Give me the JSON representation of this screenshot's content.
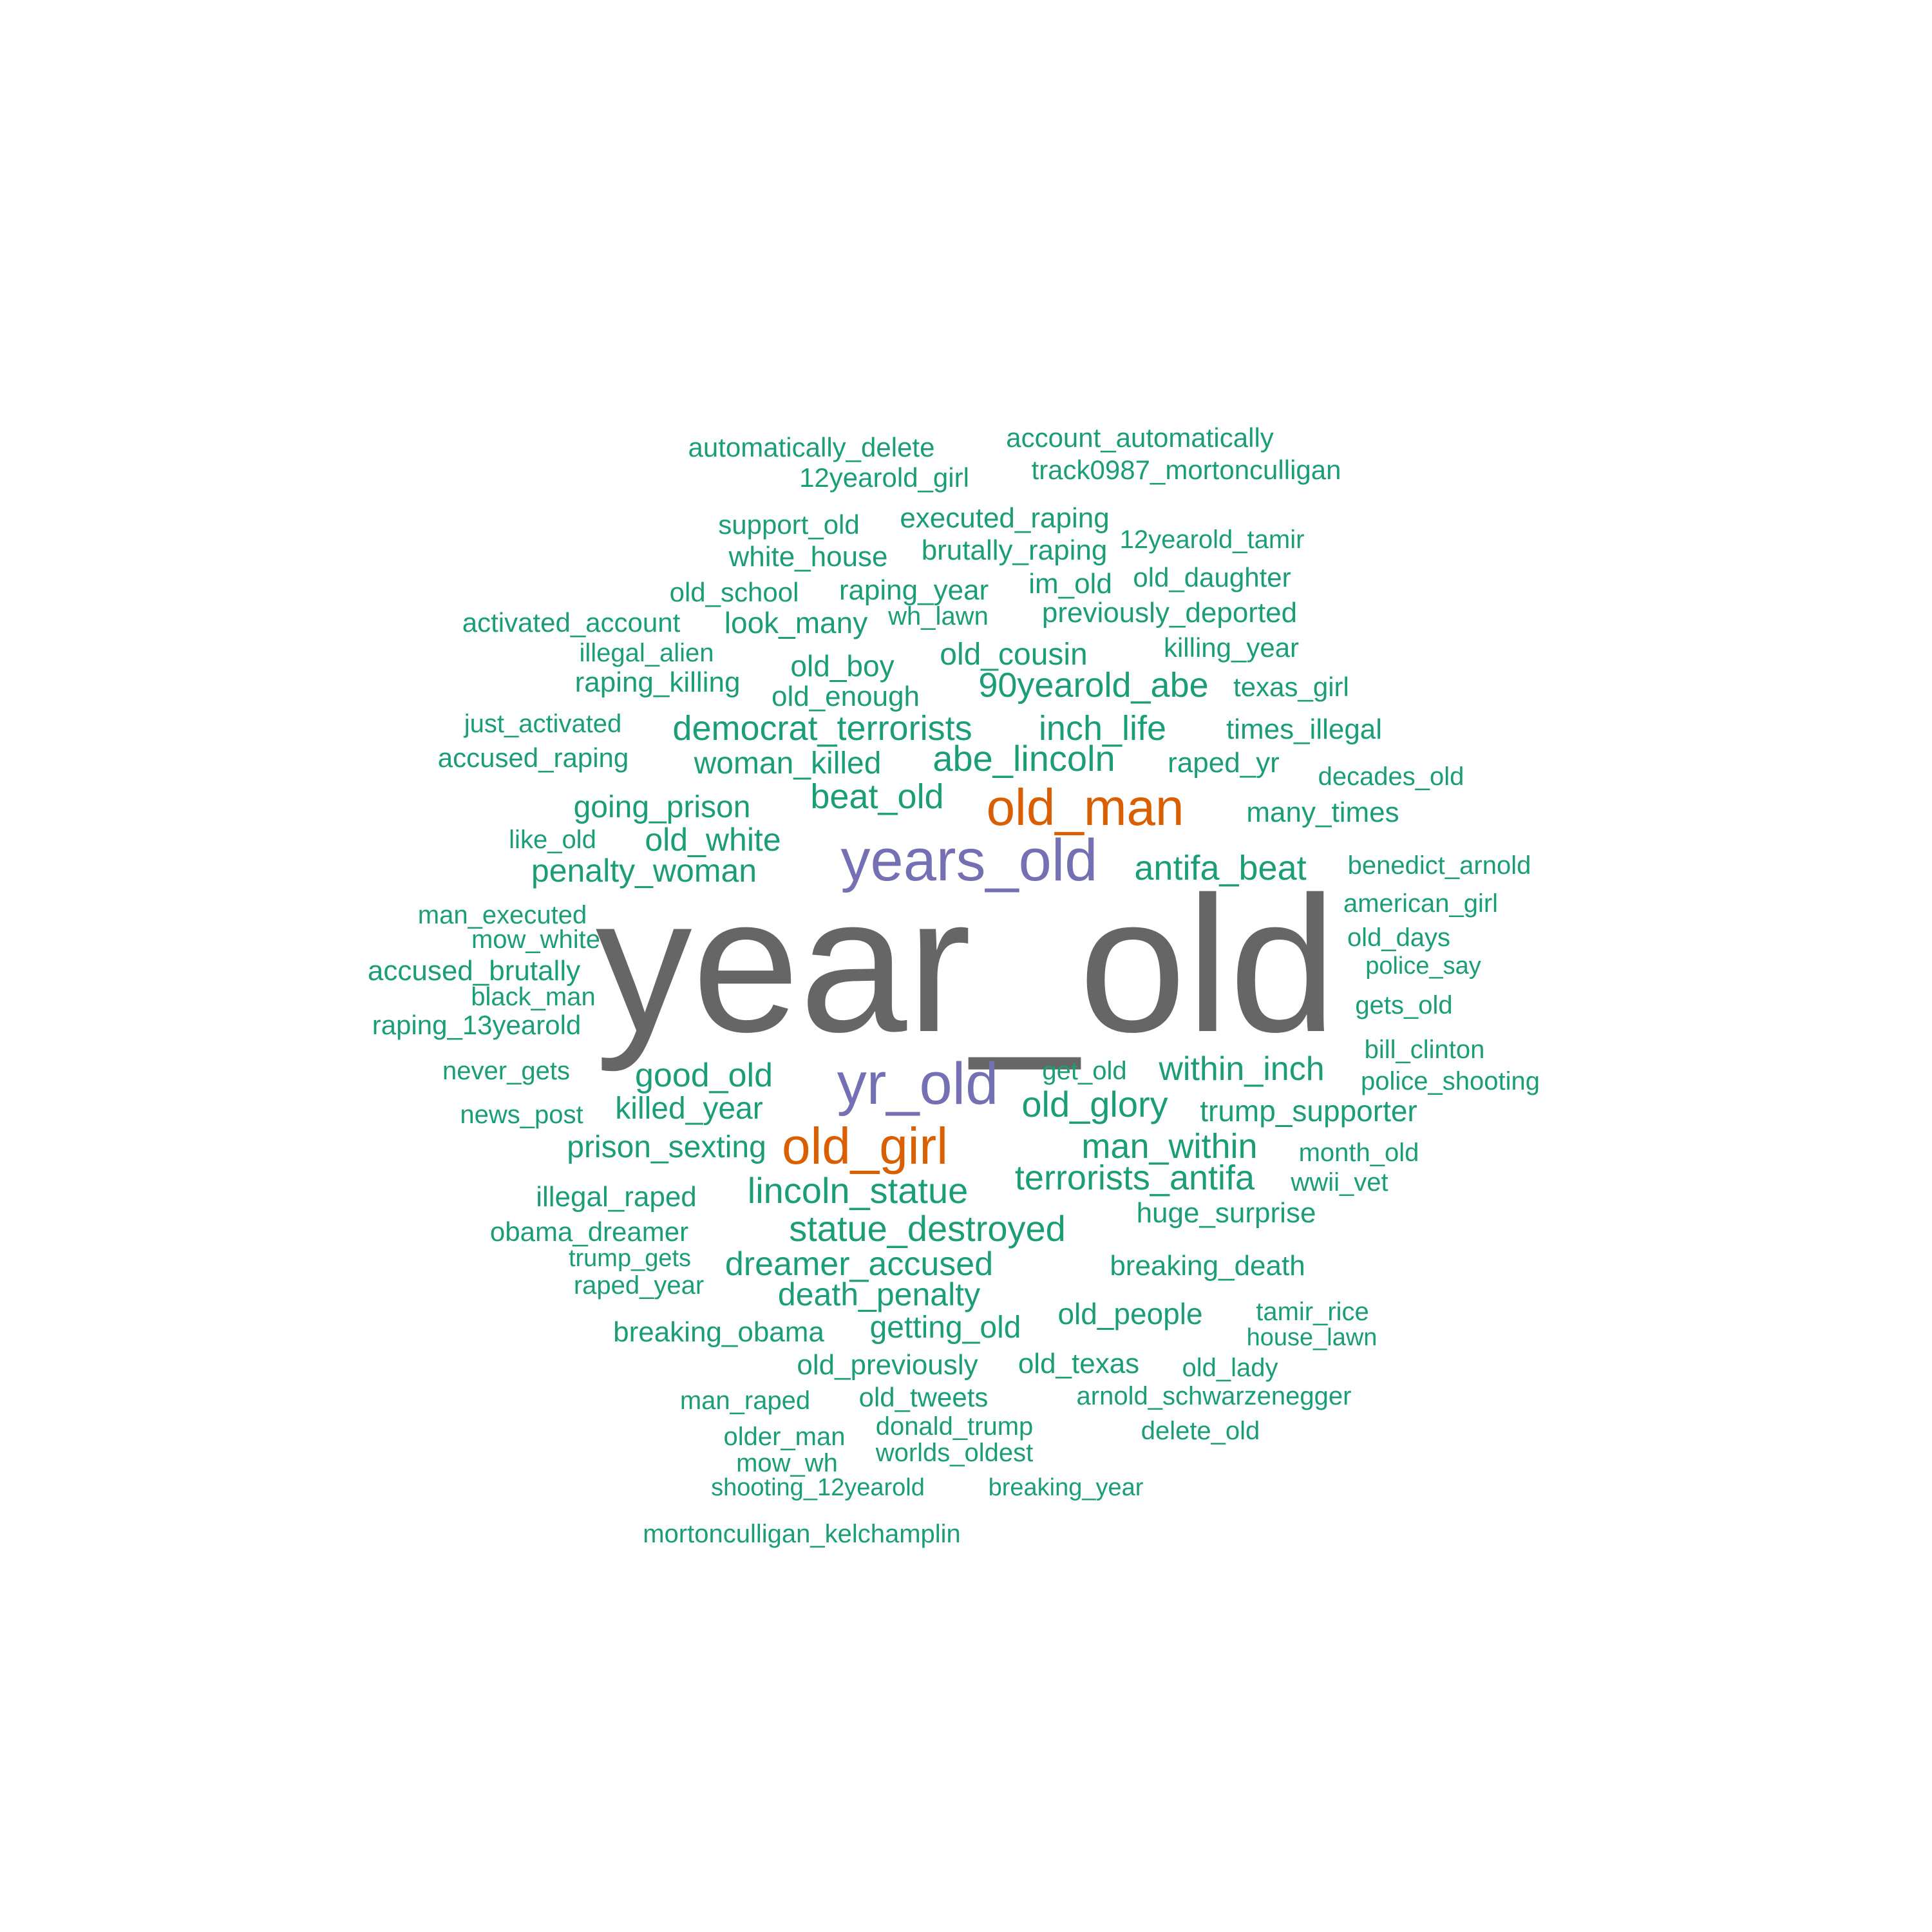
{
  "palette": {
    "background": "#ffffff",
    "gray": "#666666",
    "purple": "#7570b3",
    "orange": "#d95f02",
    "green": "#1b9e77"
  },
  "words": [
    {
      "text": "year_old",
      "color": "gray"
    },
    {
      "text": "years_old",
      "color": "purple"
    },
    {
      "text": "yr_old",
      "color": "purple"
    },
    {
      "text": "old_man",
      "color": "orange"
    },
    {
      "text": "old_girl",
      "color": "orange"
    },
    {
      "text": "automatically_delete",
      "color": "green"
    },
    {
      "text": "account_automatically",
      "color": "green"
    },
    {
      "text": "12yearold_girl",
      "color": "green"
    },
    {
      "text": "track0987_mortonculligan",
      "color": "green"
    },
    {
      "text": "support_old",
      "color": "green"
    },
    {
      "text": "executed_raping",
      "color": "green"
    },
    {
      "text": "white_house",
      "color": "green"
    },
    {
      "text": "brutally_raping",
      "color": "green"
    },
    {
      "text": "12yearold_tamir",
      "color": "green"
    },
    {
      "text": "old_school",
      "color": "green"
    },
    {
      "text": "raping_year",
      "color": "green"
    },
    {
      "text": "im_old",
      "color": "green"
    },
    {
      "text": "old_daughter",
      "color": "green"
    },
    {
      "text": "activated_account",
      "color": "green"
    },
    {
      "text": "look_many",
      "color": "green"
    },
    {
      "text": "wh_lawn",
      "color": "green"
    },
    {
      "text": "previously_deported",
      "color": "green"
    },
    {
      "text": "illegal_alien",
      "color": "green"
    },
    {
      "text": "old_boy",
      "color": "green"
    },
    {
      "text": "old_cousin",
      "color": "green"
    },
    {
      "text": "killing_year",
      "color": "green"
    },
    {
      "text": "raping_killing",
      "color": "green"
    },
    {
      "text": "old_enough",
      "color": "green"
    },
    {
      "text": "90yearold_abe",
      "color": "green"
    },
    {
      "text": "texas_girl",
      "color": "green"
    },
    {
      "text": "just_activated",
      "color": "green"
    },
    {
      "text": "democrat_terrorists",
      "color": "green"
    },
    {
      "text": "inch_life",
      "color": "green"
    },
    {
      "text": "times_illegal",
      "color": "green"
    },
    {
      "text": "accused_raping",
      "color": "green"
    },
    {
      "text": "woman_killed",
      "color": "green"
    },
    {
      "text": "abe_lincoln",
      "color": "green"
    },
    {
      "text": "raped_yr",
      "color": "green"
    },
    {
      "text": "decades_old",
      "color": "green"
    },
    {
      "text": "beat_old",
      "color": "green"
    },
    {
      "text": "going_prison",
      "color": "green"
    },
    {
      "text": "many_times",
      "color": "green"
    },
    {
      "text": "like_old",
      "color": "green"
    },
    {
      "text": "old_white",
      "color": "green"
    },
    {
      "text": "antifa_beat",
      "color": "green"
    },
    {
      "text": "benedict_arnold",
      "color": "green"
    },
    {
      "text": "penalty_woman",
      "color": "green"
    },
    {
      "text": "american_girl",
      "color": "green"
    },
    {
      "text": "man_executed",
      "color": "green"
    },
    {
      "text": "old_days",
      "color": "green"
    },
    {
      "text": "mow_white",
      "color": "green"
    },
    {
      "text": "police_say",
      "color": "green"
    },
    {
      "text": "accused_brutally",
      "color": "green"
    },
    {
      "text": "gets_old",
      "color": "green"
    },
    {
      "text": "black_man",
      "color": "green"
    },
    {
      "text": "raping_13yearold",
      "color": "green"
    },
    {
      "text": "bill_clinton",
      "color": "green"
    },
    {
      "text": "never_gets",
      "color": "green"
    },
    {
      "text": "good_old",
      "color": "green"
    },
    {
      "text": "get_old",
      "color": "green"
    },
    {
      "text": "within_inch",
      "color": "green"
    },
    {
      "text": "police_shooting",
      "color": "green"
    },
    {
      "text": "news_post",
      "color": "green"
    },
    {
      "text": "killed_year",
      "color": "green"
    },
    {
      "text": "old_glory",
      "color": "green"
    },
    {
      "text": "trump_supporter",
      "color": "green"
    },
    {
      "text": "prison_sexting",
      "color": "green"
    },
    {
      "text": "man_within",
      "color": "green"
    },
    {
      "text": "month_old",
      "color": "green"
    },
    {
      "text": "terrorists_antifa",
      "color": "green"
    },
    {
      "text": "wwii_vet",
      "color": "green"
    },
    {
      "text": "illegal_raped",
      "color": "green"
    },
    {
      "text": "lincoln_statue",
      "color": "green"
    },
    {
      "text": "huge_surprise",
      "color": "green"
    },
    {
      "text": "obama_dreamer",
      "color": "green"
    },
    {
      "text": "statue_destroyed",
      "color": "green"
    },
    {
      "text": "trump_gets",
      "color": "green"
    },
    {
      "text": "dreamer_accused",
      "color": "green"
    },
    {
      "text": "breaking_death",
      "color": "green"
    },
    {
      "text": "raped_year",
      "color": "green"
    },
    {
      "text": "death_penalty",
      "color": "green"
    },
    {
      "text": "old_people",
      "color": "green"
    },
    {
      "text": "tamir_rice",
      "color": "green"
    },
    {
      "text": "breaking_obama",
      "color": "green"
    },
    {
      "text": "getting_old",
      "color": "green"
    },
    {
      "text": "house_lawn",
      "color": "green"
    },
    {
      "text": "old_previously",
      "color": "green"
    },
    {
      "text": "old_texas",
      "color": "green"
    },
    {
      "text": "old_lady",
      "color": "green"
    },
    {
      "text": "man_raped",
      "color": "green"
    },
    {
      "text": "old_tweets",
      "color": "green"
    },
    {
      "text": "arnold_schwarzenegger",
      "color": "green"
    },
    {
      "text": "donald_trump",
      "color": "green"
    },
    {
      "text": "older_man",
      "color": "green"
    },
    {
      "text": "delete_old",
      "color": "green"
    },
    {
      "text": "worlds_oldest",
      "color": "green"
    },
    {
      "text": "mow_wh",
      "color": "green"
    },
    {
      "text": "shooting_12yearold",
      "color": "green"
    },
    {
      "text": "breaking_year",
      "color": "green"
    },
    {
      "text": "mortonculligan_kelchamplin",
      "color": "green"
    }
  ]
}
